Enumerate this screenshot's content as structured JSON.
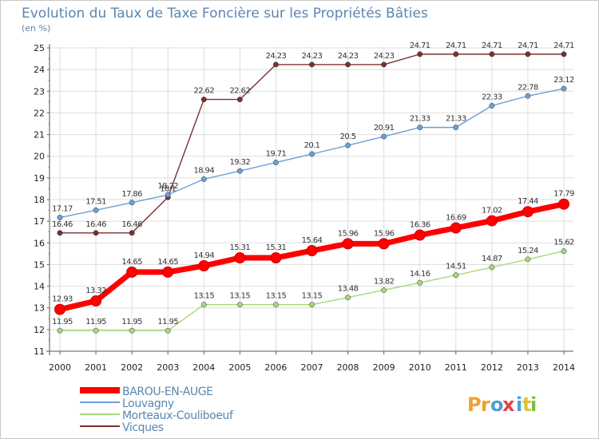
{
  "title": "Evolution du Taux de Taxe Foncière sur les Propriétés Bâties",
  "unit_label": "(en %)",
  "logo": {
    "text": "ProXiti",
    "letters": [
      "P",
      "r",
      "o",
      "x",
      "i",
      "t",
      "i"
    ],
    "colors": [
      "#f0a030",
      "#f0a030",
      "#4a9fd8",
      "#e84040",
      "#4a9fd8",
      "#e0c030",
      "#7bc043"
    ]
  },
  "chart_data": {
    "type": "line",
    "title": "Evolution du Taux de Taxe Foncière sur les Propriétés Bâties",
    "ylabel": "(en %)",
    "xlabel": "",
    "x": [
      "2000",
      "2001",
      "2002",
      "2003",
      "2004",
      "2005",
      "2006",
      "2007",
      "2008",
      "2009",
      "2010",
      "2011",
      "2012",
      "2013",
      "2014"
    ],
    "ylim": [
      11,
      25
    ],
    "yticks": [
      11,
      12,
      13,
      14,
      15,
      16,
      17,
      18,
      19,
      20,
      21,
      22,
      23,
      24,
      25
    ],
    "grid": true,
    "legend": "bottom-left",
    "series": [
      {
        "name": "BAROU-EN-AUGE",
        "color": "#ff0000",
        "values": [
          12.93,
          13.32,
          14.65,
          14.65,
          14.94,
          15.31,
          15.31,
          15.64,
          15.96,
          15.96,
          16.36,
          16.69,
          17.02,
          17.44,
          17.79
        ]
      },
      {
        "name": "Louvagny",
        "color": "#6aa0d8",
        "values": [
          17.17,
          17.51,
          17.86,
          18.22,
          18.94,
          19.32,
          19.71,
          20.1,
          20.5,
          20.91,
          21.33,
          21.33,
          22.33,
          22.78,
          23.12
        ]
      },
      {
        "name": "Morteaux-Couliboeuf",
        "color": "#a8d878",
        "values": [
          11.95,
          11.95,
          11.95,
          11.95,
          13.15,
          13.15,
          13.15,
          13.15,
          13.48,
          13.82,
          14.16,
          14.51,
          14.87,
          15.24,
          15.62
        ]
      },
      {
        "name": "Vicques",
        "color": "#7a3030",
        "values": [
          16.46,
          16.46,
          16.46,
          18.1,
          22.62,
          22.62,
          24.23,
          24.23,
          24.23,
          24.23,
          24.71,
          24.71,
          24.71,
          24.71,
          24.71
        ]
      }
    ],
    "point_labels": [
      [
        "12.93",
        "13.32",
        "14.65",
        "14.65",
        "14.94",
        "15.31",
        "15.31",
        "15.64",
        "15.96",
        "15.96",
        "16.36",
        "16.69",
        "17.02",
        "17.44",
        "17.79"
      ],
      [
        "17.17",
        "17.51",
        "17.86",
        "18.22",
        "18.94",
        "19.32",
        "19.71",
        "20.1",
        "20.5",
        "20.91",
        "21.33",
        "21.33",
        "22.33",
        "22.78",
        "23.12"
      ],
      [
        "11.95",
        "11.95",
        "11.95",
        "11.95",
        "13.15",
        "13.15",
        "13.15",
        "13.15",
        "13.48",
        "13.82",
        "14.16",
        "14.51",
        "14.87",
        "15.24",
        "15.62"
      ],
      [
        "16.46",
        "16.46",
        "16.46",
        "18.1",
        "22.62",
        "22.62",
        "24.23",
        "24.23",
        "24.23",
        "24.23",
        "24.71",
        "24.71",
        "24.71",
        "24.71",
        "24.71"
      ]
    ]
  }
}
